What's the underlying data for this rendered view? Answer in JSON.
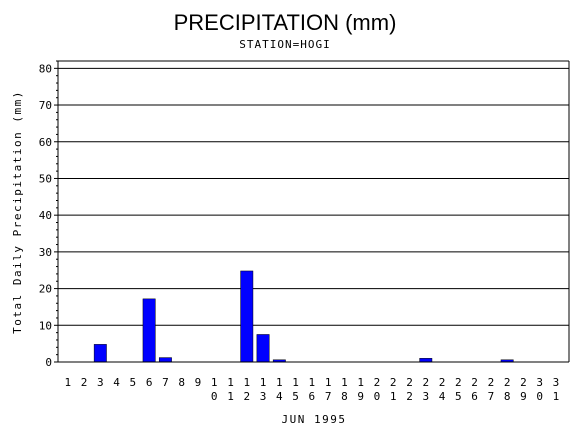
{
  "chart_data": {
    "type": "bar",
    "title": "PRECIPITATION (mm)",
    "subtitle": "STATION=HOGI",
    "xlabel": "JUN 1995",
    "ylabel": "Total Daily Precipitation (mm)",
    "ylim": [
      0,
      82
    ],
    "yticks": [
      0,
      10,
      20,
      30,
      40,
      50,
      60,
      70,
      80
    ],
    "grid": true,
    "bar_color": "#0000ff",
    "categories": [
      "1",
      "2",
      "3",
      "4",
      "5",
      "6",
      "7",
      "8",
      "9",
      "10",
      "11",
      "12",
      "13",
      "14",
      "15",
      "16",
      "17",
      "18",
      "19",
      "20",
      "21",
      "22",
      "23",
      "24",
      "25",
      "26",
      "27",
      "28",
      "29",
      "30",
      "31"
    ],
    "values": [
      0,
      0,
      4.8,
      0,
      0,
      17.2,
      1.2,
      0,
      0,
      0,
      0,
      24.8,
      7.5,
      0.6,
      0,
      0,
      0,
      0,
      0,
      0,
      0,
      0,
      1.0,
      0,
      0,
      0,
      0,
      0.6,
      0,
      0,
      0
    ]
  }
}
